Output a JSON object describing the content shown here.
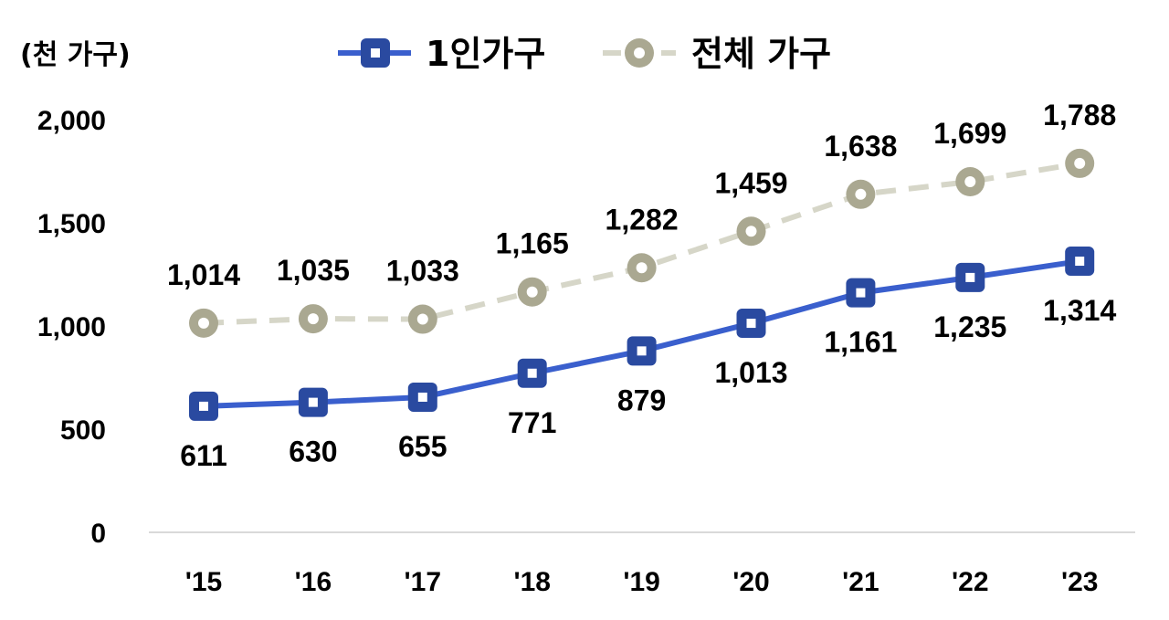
{
  "chart_data": {
    "type": "line",
    "unit_label": "(천 가구)",
    "categories": [
      "'15",
      "'16",
      "'17",
      "'18",
      "'19",
      "'20",
      "'21",
      "'22",
      "'23"
    ],
    "ylim": [
      0,
      2000
    ],
    "yticks": [
      "0",
      "500",
      "1,000",
      "1,500",
      "2,000"
    ],
    "ytick_values": [
      0,
      500,
      1000,
      1500,
      2000
    ],
    "grid": false,
    "legend_position": "top",
    "series": [
      {
        "name": "1인가구",
        "values": [
          611,
          630,
          655,
          771,
          879,
          1013,
          1161,
          1235,
          1314
        ],
        "labels": [
          "611",
          "630",
          "655",
          "771",
          "879",
          "1,013",
          "1,161",
          "1,235",
          "1,314"
        ],
        "color": "#3a5fcd",
        "marker_color": "#2a4aa0",
        "marker": "square",
        "line_style": "solid",
        "label_position": "below"
      },
      {
        "name": "전체 가구",
        "values": [
          1014,
          1035,
          1033,
          1165,
          1282,
          1459,
          1638,
          1699,
          1788
        ],
        "labels": [
          "1,014",
          "1,035",
          "1,033",
          "1,165",
          "1,282",
          "1,459",
          "1,638",
          "1,699",
          "1,788"
        ],
        "color": "#d6d6c8",
        "marker_color": "#aaa891",
        "marker": "circle",
        "line_style": "dashed",
        "label_position": "above"
      }
    ]
  }
}
